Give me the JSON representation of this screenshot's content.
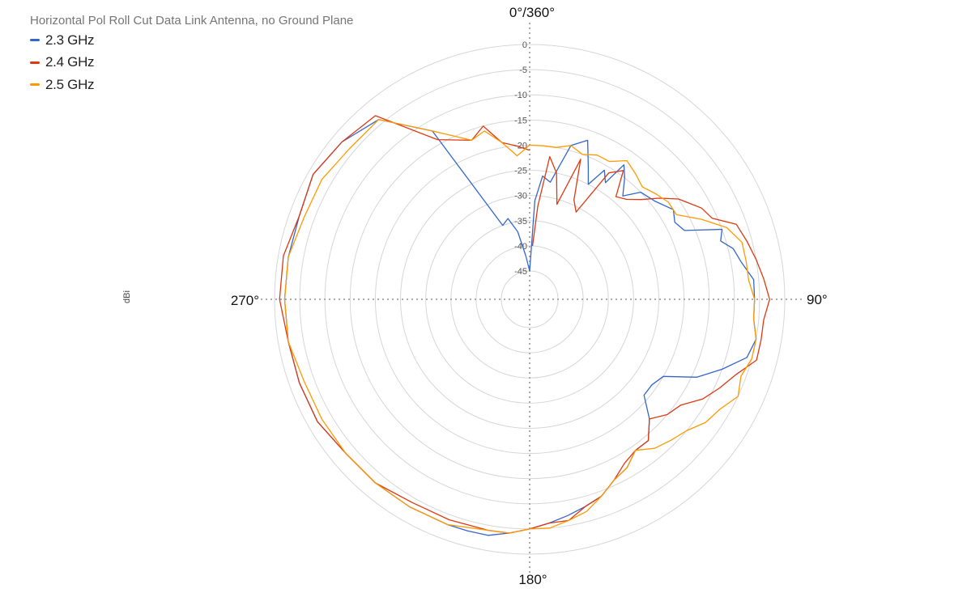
{
  "chart_data": {
    "type": "polar-line",
    "title": "Horizontal Pol Roll Cut Data Link Antenna, no Ground Plane",
    "radial_axis_label": "dBi",
    "r_range": [
      -45,
      0
    ],
    "radial_ticks": [
      "0",
      "-5",
      "-10",
      "-15",
      "-20",
      "-25",
      "-30",
      "-35",
      "-40",
      "-45"
    ],
    "angle_labels": [
      "0°/360°",
      "90°",
      "180°",
      "270°"
    ],
    "legend_position": "top-left",
    "grid": true,
    "series": [
      {
        "name": "2.3 GHz",
        "color": "#3366cc",
        "points": [
          [
            0,
            -45
          ],
          [
            3,
            -31
          ],
          [
            6,
            -26
          ],
          [
            10,
            -27
          ],
          [
            15,
            -19
          ],
          [
            20,
            -17
          ],
          [
            24,
            -22
          ],
          [
            27,
            -25
          ],
          [
            30,
            -21
          ],
          [
            33,
            -23
          ],
          [
            35,
            -18
          ],
          [
            38,
            -20
          ],
          [
            42,
            -23
          ],
          [
            46,
            -20
          ],
          [
            52,
            -19
          ],
          [
            58,
            -17
          ],
          [
            62,
            -18
          ],
          [
            66,
            -17
          ],
          [
            70,
            -10
          ],
          [
            73,
            -11
          ],
          [
            76,
            -9
          ],
          [
            80,
            -8
          ],
          [
            85,
            -6
          ],
          [
            90,
            -6
          ],
          [
            95,
            -6
          ],
          [
            100,
            -5
          ],
          [
            105,
            -6
          ],
          [
            110,
            -10
          ],
          [
            115,
            -14
          ],
          [
            120,
            -20
          ],
          [
            125,
            -21
          ],
          [
            130,
            -21
          ],
          [
            135,
            -17
          ],
          [
            140,
            -14
          ],
          [
            145,
            -14
          ],
          [
            150,
            -12
          ],
          [
            155,
            -11
          ],
          [
            160,
            -9
          ],
          [
            165,
            -8
          ],
          [
            170,
            -7
          ],
          [
            175,
            -6
          ],
          [
            180,
            -5
          ],
          [
            185,
            -4
          ],
          [
            190,
            -3
          ],
          [
            195,
            -3
          ],
          [
            200,
            -3
          ],
          [
            210,
            -3
          ],
          [
            220,
            -3
          ],
          [
            230,
            -3
          ],
          [
            240,
            -2
          ],
          [
            250,
            -2
          ],
          [
            260,
            -2
          ],
          [
            270,
            -2
          ],
          [
            280,
            -2
          ],
          [
            290,
            -2
          ],
          [
            300,
            -1
          ],
          [
            310,
            -2
          ],
          [
            320,
            -4
          ],
          [
            330,
            -12
          ],
          [
            340,
            -35
          ],
          [
            345,
            -34
          ],
          [
            350,
            -37
          ],
          [
            355,
            -42
          ],
          [
            360,
            -45
          ]
        ]
      },
      {
        "name": "2.4 GHz",
        "color": "#dc3912",
        "points": [
          [
            3,
            -40
          ],
          [
            5,
            -32
          ],
          [
            8,
            -22
          ],
          [
            12,
            -25
          ],
          [
            16,
            -31
          ],
          [
            20,
            -21
          ],
          [
            24,
            -29
          ],
          [
            28,
            -31
          ],
          [
            32,
            -21
          ],
          [
            36,
            -19
          ],
          [
            40,
            -24
          ],
          [
            44,
            -23
          ],
          [
            48,
            -21
          ],
          [
            52,
            -18
          ],
          [
            56,
            -15
          ],
          [
            62,
            -12
          ],
          [
            66,
            -11
          ],
          [
            70,
            -7
          ],
          [
            75,
            -6
          ],
          [
            80,
            -5
          ],
          [
            85,
            -4
          ],
          [
            90,
            -3
          ],
          [
            95,
            -4
          ],
          [
            100,
            -4
          ],
          [
            105,
            -4
          ],
          [
            110,
            -7
          ],
          [
            115,
            -9
          ],
          [
            120,
            -11
          ],
          [
            125,
            -14
          ],
          [
            130,
            -15
          ],
          [
            135,
            -17
          ],
          [
            140,
            -14
          ],
          [
            145,
            -14
          ],
          [
            150,
            -13
          ],
          [
            155,
            -11
          ],
          [
            160,
            -9
          ],
          [
            165,
            -8
          ],
          [
            170,
            -6
          ],
          [
            175,
            -6
          ],
          [
            180,
            -5
          ],
          [
            185,
            -4
          ],
          [
            190,
            -4
          ],
          [
            200,
            -4
          ],
          [
            210,
            -4
          ],
          [
            220,
            -3
          ],
          [
            230,
            -3
          ],
          [
            240,
            -2
          ],
          [
            250,
            -2
          ],
          [
            260,
            -2
          ],
          [
            270,
            -1
          ],
          [
            280,
            -1
          ],
          [
            290,
            -2
          ],
          [
            300,
            -1
          ],
          [
            310,
            -2
          ],
          [
            320,
            -3
          ],
          [
            330,
            -14
          ],
          [
            340,
            -17
          ],
          [
            345,
            -15
          ],
          [
            350,
            -19
          ],
          [
            355,
            -20
          ],
          [
            360,
            -21
          ]
        ]
      },
      {
        "name": "2.5 GHz",
        "color": "#ff9900",
        "points": [
          [
            0,
            -20
          ],
          [
            5,
            -20
          ],
          [
            10,
            -20
          ],
          [
            15,
            -19
          ],
          [
            20,
            -20
          ],
          [
            25,
            -19
          ],
          [
            30,
            -19
          ],
          [
            35,
            -17
          ],
          [
            40,
            -18
          ],
          [
            45,
            -19
          ],
          [
            50,
            -18
          ],
          [
            55,
            -17
          ],
          [
            60,
            -17
          ],
          [
            65,
            -13
          ],
          [
            70,
            -9
          ],
          [
            75,
            -7
          ],
          [
            80,
            -7
          ],
          [
            85,
            -7
          ],
          [
            90,
            -6
          ],
          [
            95,
            -6
          ],
          [
            100,
            -5
          ],
          [
            105,
            -5
          ],
          [
            110,
            -6
          ],
          [
            115,
            -5
          ],
          [
            120,
            -7
          ],
          [
            125,
            -8
          ],
          [
            130,
            -10
          ],
          [
            135,
            -11
          ],
          [
            140,
            -12
          ],
          [
            145,
            -14
          ],
          [
            150,
            -12
          ],
          [
            155,
            -11
          ],
          [
            160,
            -9
          ],
          [
            165,
            -7
          ],
          [
            170,
            -6
          ],
          [
            175,
            -5
          ],
          [
            180,
            -5
          ],
          [
            185,
            -4
          ],
          [
            190,
            -4
          ],
          [
            200,
            -3
          ],
          [
            210,
            -3
          ],
          [
            220,
            -3
          ],
          [
            230,
            -3
          ],
          [
            240,
            -3
          ],
          [
            250,
            -3
          ],
          [
            260,
            -2
          ],
          [
            270,
            -2
          ],
          [
            280,
            -2
          ],
          [
            290,
            -3
          ],
          [
            300,
            -3
          ],
          [
            310,
            -4
          ],
          [
            320,
            -4
          ],
          [
            330,
            -12
          ],
          [
            340,
            -17
          ],
          [
            345,
            -16
          ],
          [
            350,
            -19
          ],
          [
            355,
            -22
          ],
          [
            360,
            -20
          ]
        ]
      }
    ]
  }
}
